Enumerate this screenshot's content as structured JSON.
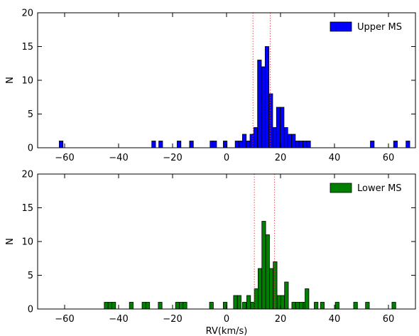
{
  "chart_data": [
    {
      "type": "bar",
      "panel": "top",
      "legend": {
        "label": "Upper MS",
        "placement": "top-right"
      },
      "color": "#0000ff",
      "xlim": [
        -70,
        70
      ],
      "ylim": [
        0,
        20
      ],
      "xticks": [
        -60,
        -40,
        -20,
        0,
        20,
        40,
        60
      ],
      "yticks": [
        0,
        5,
        10,
        15,
        20
      ],
      "xlabel": "",
      "ylabel": "N",
      "bin_width": 1.4,
      "vlines": [
        9.8,
        16.2
      ],
      "bins": [
        {
          "x": -61.3,
          "y": 1
        },
        {
          "x": -27.0,
          "y": 1
        },
        {
          "x": -24.4,
          "y": 1
        },
        {
          "x": -17.6,
          "y": 1
        },
        {
          "x": -13.0,
          "y": 1
        },
        {
          "x": -5.4,
          "y": 1
        },
        {
          "x": -4.4,
          "y": 1
        },
        {
          "x": -0.5,
          "y": 1
        },
        {
          "x": 3.9,
          "y": 1
        },
        {
          "x": 5.2,
          "y": 1
        },
        {
          "x": 6.6,
          "y": 2
        },
        {
          "x": 8.0,
          "y": 1
        },
        {
          "x": 9.4,
          "y": 2
        },
        {
          "x": 10.8,
          "y": 3
        },
        {
          "x": 12.2,
          "y": 13
        },
        {
          "x": 13.6,
          "y": 12
        },
        {
          "x": 15.0,
          "y": 15
        },
        {
          "x": 16.4,
          "y": 8
        },
        {
          "x": 17.8,
          "y": 3
        },
        {
          "x": 19.2,
          "y": 6
        },
        {
          "x": 20.6,
          "y": 6
        },
        {
          "x": 22.0,
          "y": 3
        },
        {
          "x": 23.4,
          "y": 2
        },
        {
          "x": 24.8,
          "y": 2
        },
        {
          "x": 26.2,
          "y": 1
        },
        {
          "x": 27.6,
          "y": 1
        },
        {
          "x": 29.0,
          "y": 1
        },
        {
          "x": 30.4,
          "y": 1
        },
        {
          "x": 54.0,
          "y": 1
        },
        {
          "x": 62.6,
          "y": 1
        },
        {
          "x": 67.2,
          "y": 1
        }
      ]
    },
    {
      "type": "bar",
      "panel": "bottom",
      "legend": {
        "label": "Lower MS",
        "placement": "top-right"
      },
      "color": "#008000",
      "xlim": [
        -70,
        70
      ],
      "ylim": [
        0,
        20
      ],
      "xticks": [
        -60,
        -40,
        -20,
        0,
        20,
        40,
        60
      ],
      "yticks": [
        0,
        5,
        10,
        15,
        20
      ],
      "xlabel": "RV(km/s)",
      "ylabel": "N",
      "bin_width": 1.4,
      "vlines": [
        10.3,
        17.8
      ],
      "bins": [
        {
          "x": -44.6,
          "y": 1
        },
        {
          "x": -43.2,
          "y": 1
        },
        {
          "x": -41.8,
          "y": 1
        },
        {
          "x": -35.3,
          "y": 1
        },
        {
          "x": -30.6,
          "y": 1
        },
        {
          "x": -29.2,
          "y": 1
        },
        {
          "x": -24.6,
          "y": 1
        },
        {
          "x": -18.2,
          "y": 1
        },
        {
          "x": -16.8,
          "y": 1
        },
        {
          "x": -15.4,
          "y": 1
        },
        {
          "x": -5.6,
          "y": 1
        },
        {
          "x": -0.5,
          "y": 1
        },
        {
          "x": 3.3,
          "y": 2
        },
        {
          "x": 4.7,
          "y": 2
        },
        {
          "x": 6.6,
          "y": 1
        },
        {
          "x": 8.2,
          "y": 2
        },
        {
          "x": 9.6,
          "y": 1
        },
        {
          "x": 11.0,
          "y": 3
        },
        {
          "x": 12.4,
          "y": 6
        },
        {
          "x": 13.8,
          "y": 13
        },
        {
          "x": 15.2,
          "y": 11
        },
        {
          "x": 16.6,
          "y": 6
        },
        {
          "x": 18.0,
          "y": 7
        },
        {
          "x": 19.4,
          "y": 2
        },
        {
          "x": 20.8,
          "y": 2
        },
        {
          "x": 22.2,
          "y": 4
        },
        {
          "x": 24.9,
          "y": 1
        },
        {
          "x": 26.3,
          "y": 1
        },
        {
          "x": 27.7,
          "y": 1
        },
        {
          "x": 29.1,
          "y": 1
        },
        {
          "x": 29.8,
          "y": 3
        },
        {
          "x": 33.2,
          "y": 1
        },
        {
          "x": 35.5,
          "y": 1
        },
        {
          "x": 41.0,
          "y": 1
        },
        {
          "x": 47.8,
          "y": 1
        },
        {
          "x": 52.2,
          "y": 1
        },
        {
          "x": 62.0,
          "y": 1
        }
      ]
    }
  ]
}
